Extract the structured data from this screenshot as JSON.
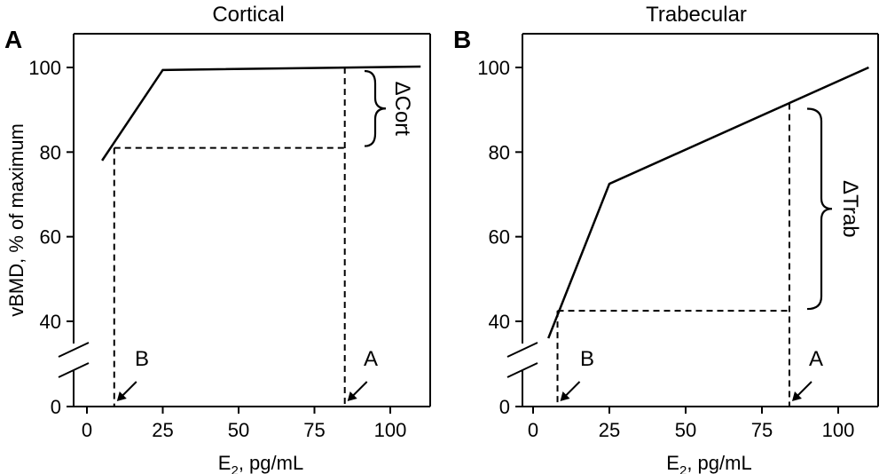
{
  "chart_data": [
    {
      "type": "line",
      "panel": "A",
      "title": "Cortical",
      "xlabel_main": "E",
      "xlabel_sub": "2",
      "xlabel_rest": ", pg/mL",
      "ylabel": "vBMD, % of maximum",
      "xticks": [
        0,
        25,
        50,
        75,
        100
      ],
      "yticks": [
        0,
        40,
        60,
        80,
        100
      ],
      "axis_break": "between 0 and 40",
      "series": [
        {
          "x": [
            5,
            25,
            110
          ],
          "y": [
            78,
            99.4,
            100.2
          ]
        }
      ],
      "annotation_label": "ΔCort",
      "marker_A": {
        "label": "A",
        "x": 85
      },
      "marker_B": {
        "label": "B",
        "x": 9
      },
      "guide_y_at_A": 100,
      "guide_y_at_B": 81
    },
    {
      "type": "line",
      "panel": "B",
      "title": "Trabecular",
      "xlabel_main": "E",
      "xlabel_sub": "2",
      "xlabel_rest": ", pg/mL",
      "ylabel": "",
      "xticks": [
        0,
        25,
        50,
        75,
        100
      ],
      "yticks": [
        0,
        40,
        60,
        80,
        100
      ],
      "axis_break": "between 0 and 40",
      "series": [
        {
          "x": [
            5,
            25,
            110
          ],
          "y": [
            36,
            72.5,
            100
          ]
        }
      ],
      "annotation_label": "ΔTrab",
      "marker_A": {
        "label": "A",
        "x": 84
      },
      "marker_B": {
        "label": "B",
        "x": 8
      },
      "guide_y_at_A": 91.5,
      "guide_y_at_B": 42.5
    }
  ]
}
